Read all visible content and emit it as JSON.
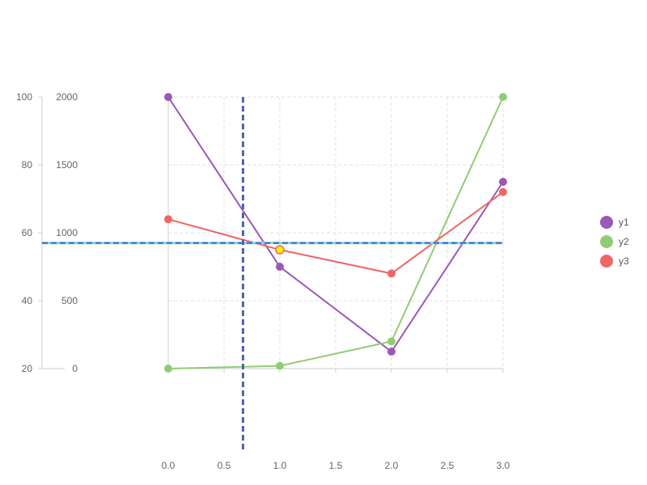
{
  "chart_data": {
    "type": "line",
    "x": [
      0,
      1,
      2,
      3
    ],
    "x_ticks": [
      "0.0",
      "0.5",
      "1.0",
      "1.5",
      "2.0",
      "2.5",
      "3.0"
    ],
    "xlim": [
      0,
      3
    ],
    "y_left_ticks": [
      "20",
      "40",
      "60",
      "80",
      "100"
    ],
    "y_left_lim": [
      20,
      100
    ],
    "y_right_ticks": [
      "0",
      "500",
      "1000",
      "1500",
      "2000"
    ],
    "y_right_lim": [
      0,
      2000
    ],
    "grid": true,
    "legend_position": "right",
    "series": [
      {
        "name": "y1",
        "axis": "left",
        "color": "#9b59b6",
        "values": [
          100,
          50,
          25,
          75
        ]
      },
      {
        "name": "y2",
        "axis": "right",
        "color": "#91cc75",
        "values": [
          0,
          20,
          200,
          2000
        ]
      },
      {
        "name": "y3",
        "axis": "left",
        "color": "#ee6666",
        "values": [
          64,
          55,
          48,
          72
        ]
      }
    ],
    "crosshair": {
      "x": 0.67,
      "y_left": 57,
      "color": "#4a64b0"
    },
    "highlight_point": {
      "series": "y3",
      "x": 1,
      "fill": "#ffee00"
    }
  }
}
